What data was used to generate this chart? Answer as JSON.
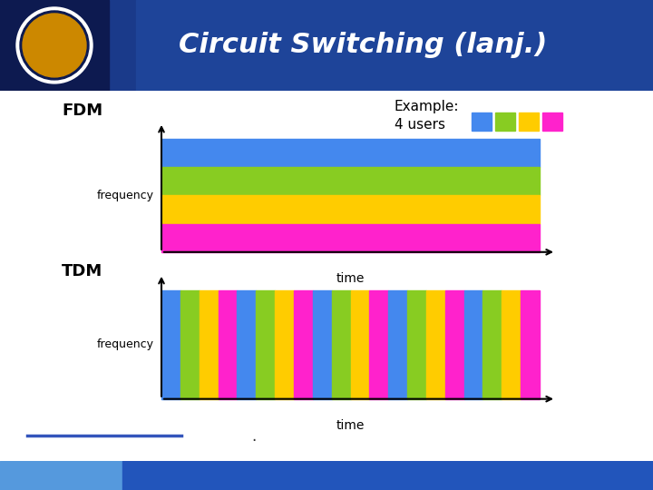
{
  "title": "Circuit Switching (lanj.)",
  "background_color": "#ffffff",
  "fdm_label": "FDM",
  "tdm_label": "TDM",
  "frequency_label": "frequency",
  "time_label": "time",
  "example_label": "Example:",
  "users_label": "4 users",
  "user_colors": [
    "#4488ee",
    "#88cc22",
    "#ffcc00",
    "#ff22cc"
  ],
  "fdm_colors_top_to_bottom": [
    "#4488ee",
    "#88cc22",
    "#ffcc00",
    "#ff22cc"
  ],
  "tdm_colors": [
    "#4488ee",
    "#88cc22",
    "#ffcc00",
    "#ff22cc"
  ],
  "footer_left_color": "#5599dd",
  "footer_right_color": "#2255bb",
  "header_dark_blue": "#0a1a5a",
  "header_mid_blue": "#1a3a8a"
}
